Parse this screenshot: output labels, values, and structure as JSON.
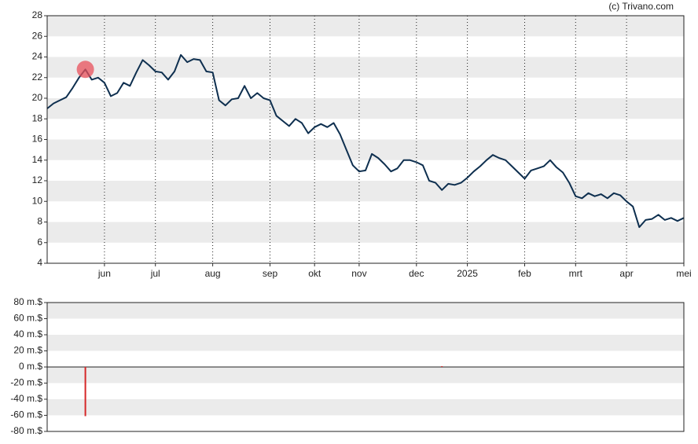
{
  "chart_data": [
    {
      "type": "line",
      "annotation": "(c) Trivano.com",
      "categories": [
        "",
        "",
        "",
        "",
        "",
        "",
        "",
        "",
        "",
        "jun",
        "",
        "",
        "",
        "",
        "",
        "",
        "",
        "jul",
        "",
        "",
        "",
        "",
        "",
        "",
        "",
        "",
        "aug",
        "",
        "",
        "",
        "",
        "",
        "",
        "",
        "",
        "sep",
        "",
        "",
        "",
        "",
        "",
        "",
        "okt",
        "",
        "",
        "",
        "",
        "",
        "",
        "nov",
        "",
        "",
        "",
        "",
        "",
        "",
        "",
        "",
        "dec",
        "",
        "",
        "",
        "",
        "",
        "",
        "",
        "2025",
        "",
        "",
        "",
        "",
        "",
        "",
        "",
        "",
        "feb",
        "",
        "",
        "",
        "",
        "",
        "",
        "",
        "mrt",
        "",
        "",
        "",
        "",
        "",
        "",
        "",
        "apr",
        "",
        "",
        "",
        "",
        "",
        "",
        "",
        "",
        "mei"
      ],
      "series": [
        {
          "color": "#0e2f4f",
          "values": [
            19.0,
            19.5,
            19.8,
            20.1,
            21.0,
            22.0,
            22.8,
            21.8,
            22.0,
            21.5,
            20.2,
            20.5,
            21.5,
            21.2,
            22.5,
            23.7,
            23.2,
            22.6,
            22.5,
            21.8,
            22.6,
            24.2,
            23.5,
            23.8,
            23.7,
            22.6,
            22.5,
            19.8,
            19.3,
            19.9,
            20.0,
            21.2,
            20.0,
            20.5,
            20.0,
            19.8,
            18.3,
            17.8,
            17.3,
            18.0,
            17.6,
            16.6,
            17.2,
            17.5,
            17.2,
            17.6,
            16.5,
            15.0,
            13.5,
            12.9,
            13.0,
            14.6,
            14.2,
            13.6,
            12.9,
            13.2,
            14.0,
            14.0,
            13.8,
            13.5,
            12.0,
            11.8,
            11.1,
            11.7,
            11.6,
            11.8,
            12.3,
            12.9,
            13.4,
            14.0,
            14.5,
            14.2,
            14.0,
            13.4,
            12.8,
            12.2,
            13.0,
            13.2,
            13.4,
            14.0,
            13.3,
            12.8,
            11.8,
            10.5,
            10.3,
            10.8,
            10.5,
            10.7,
            10.3,
            10.8,
            10.6,
            10.0,
            9.5,
            7.5,
            8.2,
            8.3,
            8.7,
            8.2,
            8.4,
            8.1,
            8.4
          ]
        }
      ],
      "marker_points": [
        6
      ],
      "marker_color": "#e8505b",
      "ylim": [
        4,
        28
      ],
      "yticks": [
        4,
        6,
        8,
        10,
        12,
        14,
        16,
        18,
        20,
        22,
        24,
        26,
        28
      ],
      "grid": true
    },
    {
      "type": "bar",
      "color": "#d62728",
      "values": [
        null,
        null,
        null,
        null,
        null,
        null,
        -61,
        null,
        null,
        null,
        null,
        null,
        null,
        null,
        null,
        null,
        null,
        null,
        null,
        null,
        null,
        null,
        null,
        null,
        null,
        null,
        null,
        null,
        null,
        null,
        null,
        null,
        null,
        null,
        null,
        null,
        null,
        null,
        null,
        null,
        null,
        null,
        null,
        null,
        null,
        null,
        null,
        null,
        null,
        null,
        null,
        null,
        null,
        null,
        null,
        null,
        null,
        null,
        null,
        null,
        null,
        null,
        1,
        null,
        null,
        null,
        null,
        null,
        null,
        null,
        null,
        null,
        null,
        null,
        null,
        null,
        null,
        null,
        null,
        null,
        null,
        null,
        null,
        null,
        null,
        null,
        null,
        null,
        null,
        null,
        null,
        null,
        null,
        null,
        null,
        null,
        null,
        null,
        null,
        null,
        null
      ],
      "ylim": [
        -80,
        80
      ],
      "yticks": [
        {
          "value": -80,
          "label": "-80 m.$"
        },
        {
          "value": -60,
          "label": "-60 m.$"
        },
        {
          "value": -40,
          "label": "-40 m.$"
        },
        {
          "value": -20,
          "label": "-20 m.$"
        },
        {
          "value": 0,
          "label": "0 m.$"
        },
        {
          "value": 20,
          "label": "20 m.$"
        },
        {
          "value": 40,
          "label": "40 m.$"
        },
        {
          "value": 60,
          "label": "60 m.$"
        },
        {
          "value": 80,
          "label": "80 m.$"
        }
      ],
      "grid": true
    }
  ]
}
